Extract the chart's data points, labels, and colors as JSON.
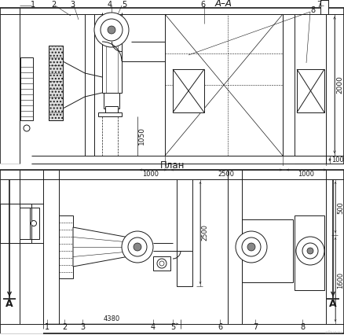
{
  "bg": "#ffffff",
  "lc": "#1a1a1a",
  "title_aa": "A–A",
  "title_plan": "План",
  "dim_1050": "1050",
  "dim_100": "100",
  "dim_1000l": "1000",
  "dim_2500t": "2500",
  "dim_1000r": "1000",
  "dim_2000": "2000",
  "dim_4380": "4380",
  "dim_2500b": "2500",
  "dim_500": "500",
  "dim_1600": "1600",
  "fs": 6.5,
  "fs_title": 8.5,
  "fs_num": 7
}
